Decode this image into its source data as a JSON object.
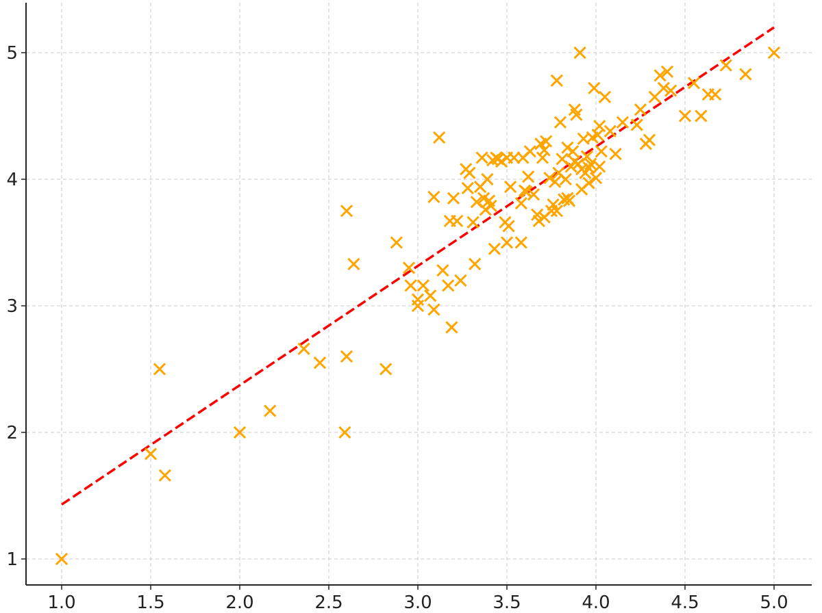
{
  "chart_data": {
    "type": "scatter",
    "title": "",
    "xlabel": "",
    "ylabel": "",
    "xlim": [
      0.8,
      5.2
    ],
    "ylim": [
      0.8,
      5.4
    ],
    "xticks": [
      1.0,
      1.5,
      2.0,
      2.5,
      3.0,
      3.5,
      4.0,
      4.5,
      5.0
    ],
    "xtick_labels": [
      "1.0",
      "1.5",
      "2.0",
      "2.5",
      "3.0",
      "3.5",
      "4.0",
      "4.5",
      "5.0"
    ],
    "yticks": [
      1,
      2,
      3,
      4,
      5
    ],
    "ytick_labels": [
      "1",
      "2",
      "3",
      "4",
      "5"
    ],
    "grid": true,
    "colors": {
      "points": "#FFA500",
      "fit_line": "#FF0000"
    },
    "series": [
      {
        "type": "scatter",
        "marker": "x",
        "x": [
          1.0,
          1.5,
          1.55,
          1.58,
          2.0,
          2.17,
          2.36,
          2.45,
          2.59,
          2.6,
          2.6,
          2.64,
          2.82,
          2.88,
          2.95,
          2.96,
          3.0,
          3.0,
          3.03,
          3.07,
          3.09,
          3.09,
          3.12,
          3.14,
          3.17,
          3.18,
          3.19,
          3.2,
          3.22,
          3.24,
          3.27,
          3.28,
          3.29,
          3.31,
          3.32,
          3.33,
          3.35,
          3.36,
          3.37,
          3.38,
          3.39,
          3.4,
          3.41,
          3.42,
          3.43,
          3.44,
          3.45,
          3.47,
          3.49,
          3.5,
          3.5,
          3.51,
          3.52,
          3.54,
          3.58,
          3.58,
          3.59,
          3.6,
          3.62,
          3.63,
          3.65,
          3.67,
          3.68,
          3.69,
          3.7,
          3.71,
          3.72,
          3.74,
          3.75,
          3.76,
          3.77,
          3.78,
          3.78,
          3.79,
          3.8,
          3.81,
          3.82,
          3.83,
          3.84,
          3.85,
          3.86,
          3.87,
          3.88,
          3.89,
          3.9,
          3.91,
          3.92,
          3.93,
          3.94,
          3.95,
          3.96,
          3.97,
          3.98,
          3.99,
          4.0,
          4.01,
          4.02,
          4.03,
          4.05,
          4.08,
          4.11,
          4.15,
          4.23,
          4.25,
          4.28,
          4.3,
          4.33,
          4.36,
          4.38,
          4.4,
          4.42,
          4.5,
          4.55,
          4.59,
          4.63,
          4.67,
          4.73,
          4.84,
          5.0,
          3.92,
          3.88,
          3.96,
          4.02,
          3.84,
          3.71,
          3.61
        ],
        "y": [
          1.0,
          1.83,
          2.5,
          1.66,
          2.0,
          2.17,
          2.66,
          2.55,
          2.0,
          3.75,
          2.6,
          3.33,
          2.5,
          3.5,
          3.3,
          3.16,
          3.0,
          3.05,
          3.16,
          3.08,
          3.86,
          2.97,
          4.33,
          3.28,
          3.16,
          3.67,
          2.83,
          3.85,
          3.67,
          3.2,
          4.08,
          3.93,
          4.05,
          3.66,
          3.33,
          3.82,
          3.94,
          4.17,
          3.85,
          3.76,
          4.0,
          3.83,
          3.79,
          4.15,
          3.45,
          4.17,
          4.16,
          4.14,
          3.66,
          3.5,
          4.17,
          3.63,
          3.94,
          4.17,
          3.81,
          3.5,
          4.17,
          3.91,
          4.02,
          4.22,
          3.88,
          3.72,
          3.67,
          4.28,
          4.17,
          3.7,
          4.3,
          4.01,
          3.75,
          3.8,
          3.98,
          4.78,
          3.75,
          4.05,
          4.45,
          4.16,
          3.84,
          4.0,
          4.25,
          3.83,
          4.1,
          4.22,
          4.55,
          4.51,
          4.12,
          5.0,
          4.08,
          4.32,
          4.05,
          4.18,
          4.09,
          4.12,
          4.33,
          4.72,
          4.01,
          4.35,
          4.42,
          4.22,
          4.65,
          4.38,
          4.2,
          4.45,
          4.43,
          4.55,
          4.28,
          4.31,
          4.65,
          4.82,
          4.72,
          4.85,
          4.7,
          4.5,
          4.76,
          4.5,
          4.67,
          4.67,
          4.9,
          4.83,
          5.0,
          3.92,
          4.14,
          3.97,
          4.1,
          3.85,
          4.23,
          3.9
        ]
      },
      {
        "type": "line",
        "style": "dashed",
        "x": [
          1.0,
          5.0
        ],
        "y": [
          1.43,
          5.2
        ]
      }
    ]
  }
}
